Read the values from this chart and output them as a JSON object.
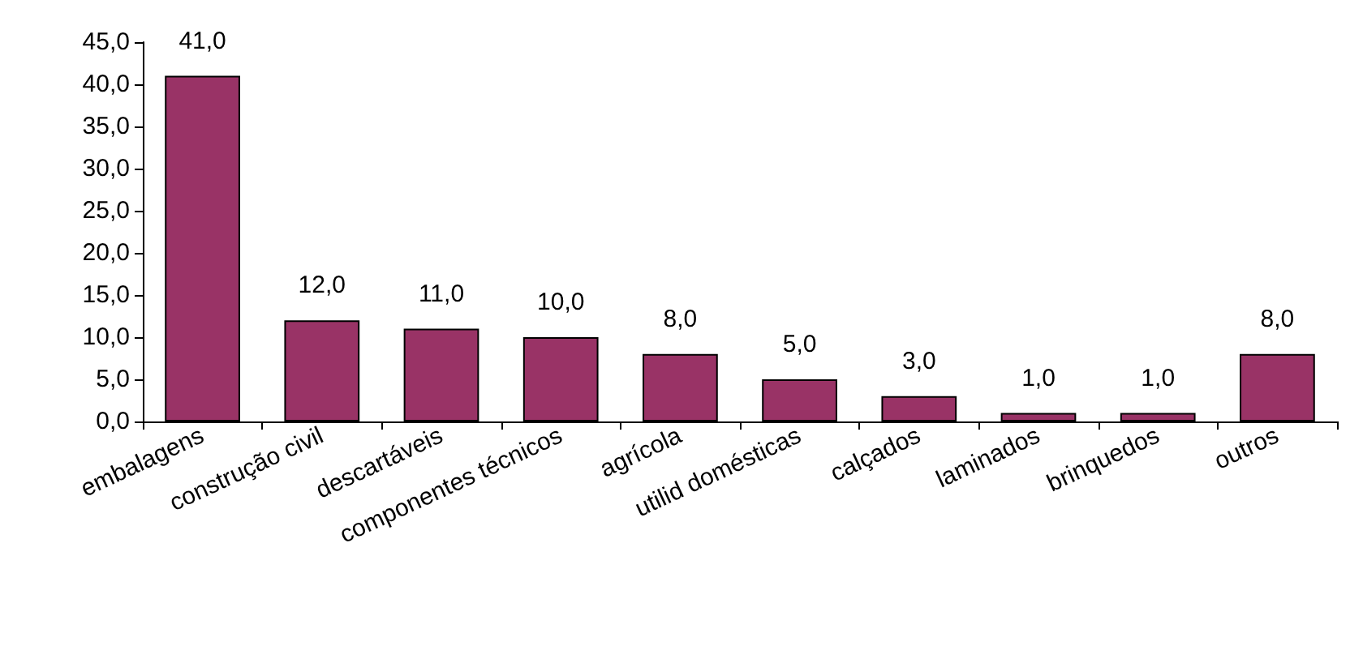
{
  "chart_data": {
    "type": "bar",
    "categories": [
      "embalagens",
      "construção civil",
      "descartáveis",
      "componentes técnicos",
      "agrícola",
      "utilid domésticas",
      "calçados",
      "laminados",
      "brinquedos",
      "outros"
    ],
    "values": [
      41,
      12,
      11,
      10,
      8,
      5,
      3,
      1,
      1,
      8
    ],
    "value_labels": [
      "41,0",
      "12,0",
      "11,0",
      "10,0",
      "8,0",
      "5,0",
      "3,0",
      "1,0",
      "1,0",
      "8,0"
    ],
    "color": "#993366",
    "ylim": [
      0,
      45
    ],
    "yticks": [
      {
        "value": 0,
        "label": "0,0"
      },
      {
        "value": 5,
        "label": "5,0"
      },
      {
        "value": 10,
        "label": "10,0"
      },
      {
        "value": 15,
        "label": "15,0"
      },
      {
        "value": 20,
        "label": "20,0"
      },
      {
        "value": 25,
        "label": "25,0"
      },
      {
        "value": 30,
        "label": "30,0"
      },
      {
        "value": 35,
        "label": "35,0"
      },
      {
        "value": 40,
        "label": "40,0"
      },
      {
        "value": 45,
        "label": "45,0"
      }
    ],
    "grid": false
  }
}
